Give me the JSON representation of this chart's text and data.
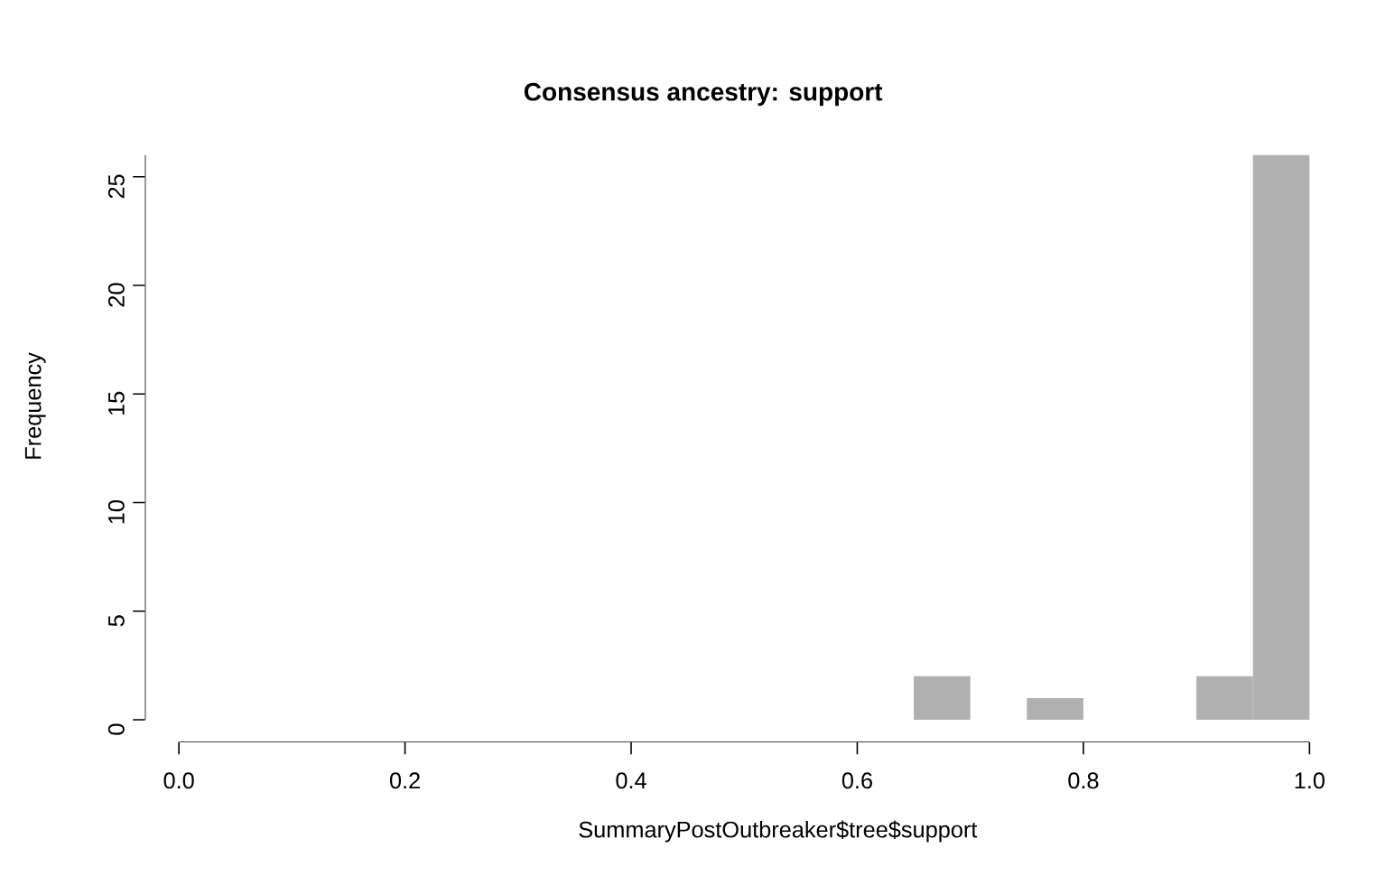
{
  "chart_data": {
    "type": "histogram",
    "title": "Consensus ancestry: support",
    "xlabel": "SummaryPostOutbreaker$tree$support",
    "ylabel": "Frequency",
    "bins": [
      0.65,
      0.7,
      0.75,
      0.8,
      0.85,
      0.9,
      0.95,
      1.0
    ],
    "values": [
      2,
      0,
      1,
      0,
      0,
      2,
      26
    ],
    "color": "#b0b0b0",
    "xlim": [
      0,
      1
    ],
    "xticks": [
      {
        "value": 0,
        "label": "0.0"
      },
      0.2,
      0.4,
      0.6,
      0.8,
      {
        "value": 1,
        "label": "1.0"
      }
    ],
    "ylim": [
      0,
      26
    ],
    "yticks": [
      0,
      5,
      10,
      15,
      20,
      25
    ],
    "grid": false
  }
}
